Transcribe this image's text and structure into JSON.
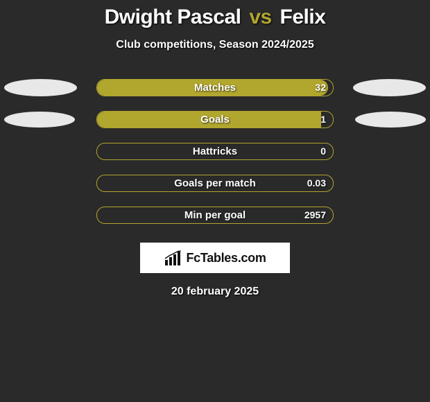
{
  "background_color": "#2a2a2a",
  "accent_color": "#b1a62e",
  "text_color": "#ffffff",
  "ellipse_color": "#e8e8e8",
  "title": {
    "player1": "Dwight Pascal",
    "vs": "vs",
    "player2": "Felix",
    "fontsize": 30
  },
  "subtitle": "Club competitions, Season 2024/2025",
  "rows": [
    {
      "label": "Matches",
      "value": "32",
      "fill_pct": 98,
      "show_left_ellipse": true,
      "show_right_ellipse": true,
      "ellipse_small": false
    },
    {
      "label": "Goals",
      "value": "1",
      "fill_pct": 95,
      "show_left_ellipse": true,
      "show_right_ellipse": true,
      "ellipse_small": true
    },
    {
      "label": "Hattricks",
      "value": "0",
      "fill_pct": 0,
      "show_left_ellipse": false,
      "show_right_ellipse": false,
      "ellipse_small": false
    },
    {
      "label": "Goals per match",
      "value": "0.03",
      "fill_pct": 0,
      "show_left_ellipse": false,
      "show_right_ellipse": false,
      "ellipse_small": false
    },
    {
      "label": "Min per goal",
      "value": "2957",
      "fill_pct": 0,
      "show_left_ellipse": false,
      "show_right_ellipse": false,
      "ellipse_small": false
    }
  ],
  "logo": {
    "text": "FcTables.com",
    "box_bg": "#ffffff",
    "text_color": "#111111"
  },
  "date": "20 february 2025"
}
